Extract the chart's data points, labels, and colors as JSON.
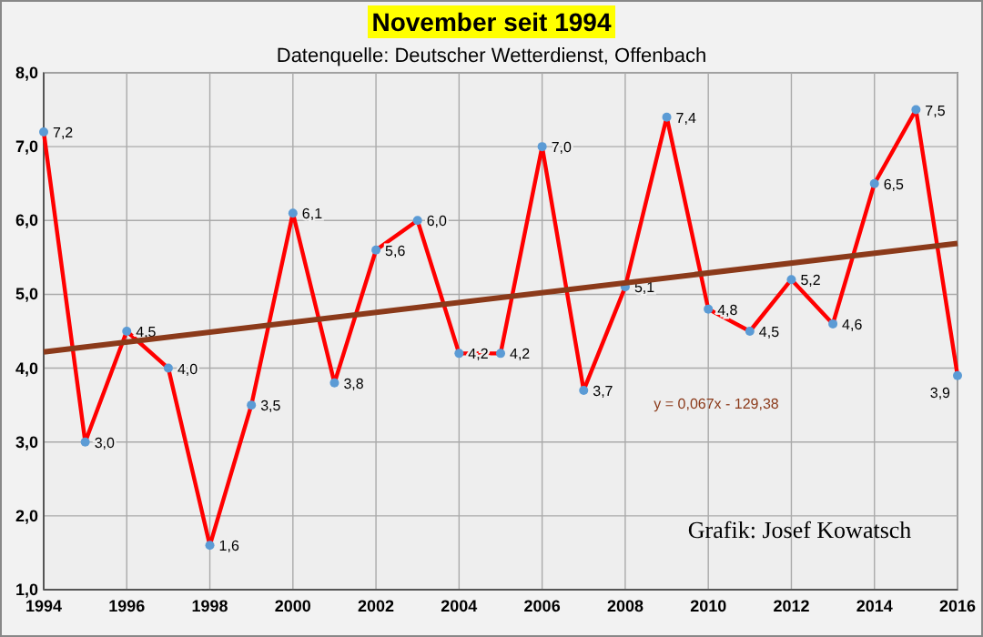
{
  "chart_data": {
    "type": "line",
    "title": "November seit 1994",
    "subtitle": "Datenquelle: Deutscher Wetterdienst, Offenbach",
    "x": [
      1994,
      1995,
      1996,
      1997,
      1998,
      1999,
      2000,
      2001,
      2002,
      2003,
      2004,
      2005,
      2006,
      2007,
      2008,
      2009,
      2010,
      2011,
      2012,
      2013,
      2014,
      2015,
      2016
    ],
    "series": [
      {
        "color": "#ff0000",
        "values": [
          7.2,
          3.0,
          4.5,
          4.0,
          1.6,
          3.5,
          6.1,
          3.8,
          5.6,
          6.0,
          4.2,
          4.2,
          7.0,
          3.7,
          5.1,
          7.4,
          4.8,
          4.5,
          5.2,
          4.6,
          6.5,
          7.5,
          3.9
        ],
        "value_labels": [
          "7,2",
          "3,0",
          "4,5",
          "4,0",
          "1,6",
          "3,5",
          "6,1",
          "3,8",
          "5,6",
          "6,0",
          "4,2",
          "4,2",
          "7,0",
          "3,7",
          "5,1",
          "7,4",
          "4,8",
          "4,5",
          "5,2",
          "4,6",
          "6,5",
          "7,5",
          "3,9"
        ],
        "marker": "circle"
      },
      {
        "color": "#8b3a1a",
        "x": [
          1994,
          2016
        ],
        "values": [
          4.22,
          5.69
        ],
        "marker": "none"
      }
    ],
    "xlim": [
      1994,
      2016
    ],
    "xticks": [
      1994,
      1996,
      1998,
      2000,
      2002,
      2004,
      2006,
      2008,
      2010,
      2012,
      2014,
      2016
    ],
    "ylim": [
      1,
      8
    ],
    "yticks": [
      {
        "value": 1,
        "label": "1,0"
      },
      {
        "value": 2,
        "label": "2,0"
      },
      {
        "value": 3,
        "label": "3,0"
      },
      {
        "value": 4,
        "label": "4,0"
      },
      {
        "value": 5,
        "label": "5,0"
      },
      {
        "value": 6,
        "label": "6,0"
      },
      {
        "value": 7,
        "label": "7,0"
      },
      {
        "value": 8,
        "label": "8,0"
      }
    ],
    "grid": true,
    "line_style": "solid",
    "annotations": [
      "y = 0,067x - 129,38",
      "Grafik: Josef Kowatsch"
    ]
  }
}
